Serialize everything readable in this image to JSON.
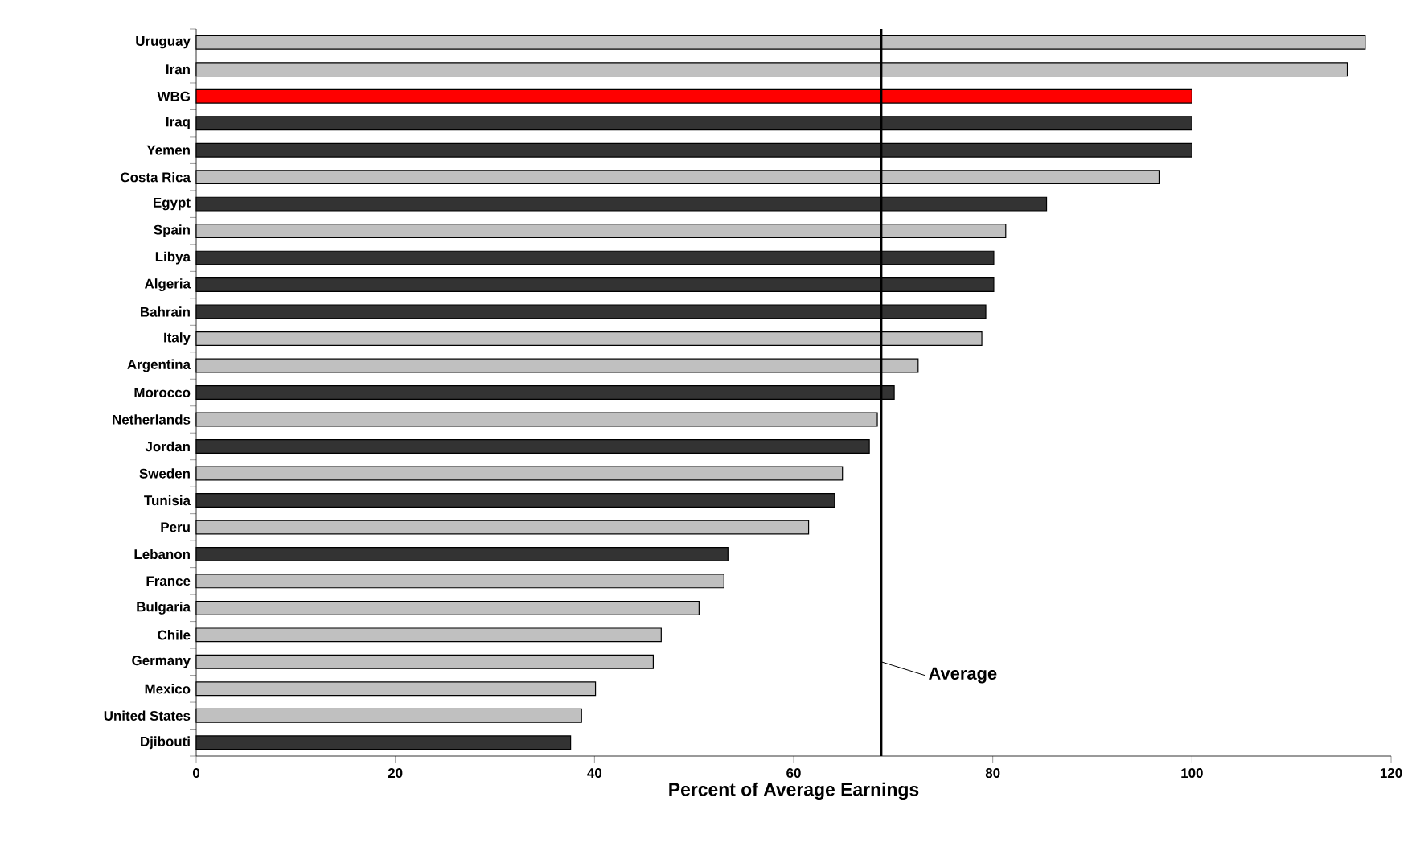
{
  "chart_data": {
    "type": "bar",
    "orientation": "horizontal",
    "xlabel": "Percent of Average Earnings",
    "categories": [
      "Uruguay",
      "Iran",
      "WBG",
      "Iraq",
      "Yemen",
      "Costa Rica",
      "Egypt",
      "Spain",
      "Libya",
      "Algeria",
      "Bahrain",
      "Italy",
      "Argentina",
      "Morocco",
      "Netherlands",
      "Jordan",
      "Sweden",
      "Tunisia",
      "Peru",
      "Lebanon",
      "France",
      "Bulgaria",
      "Chile",
      "Germany",
      "Mexico",
      "United States",
      "Djibouti"
    ],
    "values": [
      117.4,
      115.6,
      100,
      100,
      100,
      96.7,
      85.4,
      81.3,
      80.1,
      80.1,
      79.3,
      78.9,
      72.5,
      70.1,
      68.4,
      67.6,
      64.9,
      64.1,
      61.5,
      53.4,
      53.0,
      50.5,
      46.7,
      45.9,
      40.1,
      38.7,
      37.6
    ],
    "colors": [
      "#c0c0c0",
      "#c0c0c0",
      "#ff0000",
      "#333333",
      "#333333",
      "#c0c0c0",
      "#333333",
      "#c0c0c0",
      "#333333",
      "#333333",
      "#333333",
      "#c0c0c0",
      "#c0c0c0",
      "#333333",
      "#c0c0c0",
      "#333333",
      "#c0c0c0",
      "#333333",
      "#c0c0c0",
      "#333333",
      "#c0c0c0",
      "#c0c0c0",
      "#c0c0c0",
      "#c0c0c0",
      "#c0c0c0",
      "#c0c0c0",
      "#333333"
    ],
    "xlim": [
      0,
      120
    ],
    "xticks": [
      0,
      20,
      40,
      60,
      80,
      100,
      120
    ],
    "ref_lines": [
      {
        "axis": "x",
        "value": 68.8,
        "label": "Average"
      }
    ]
  }
}
